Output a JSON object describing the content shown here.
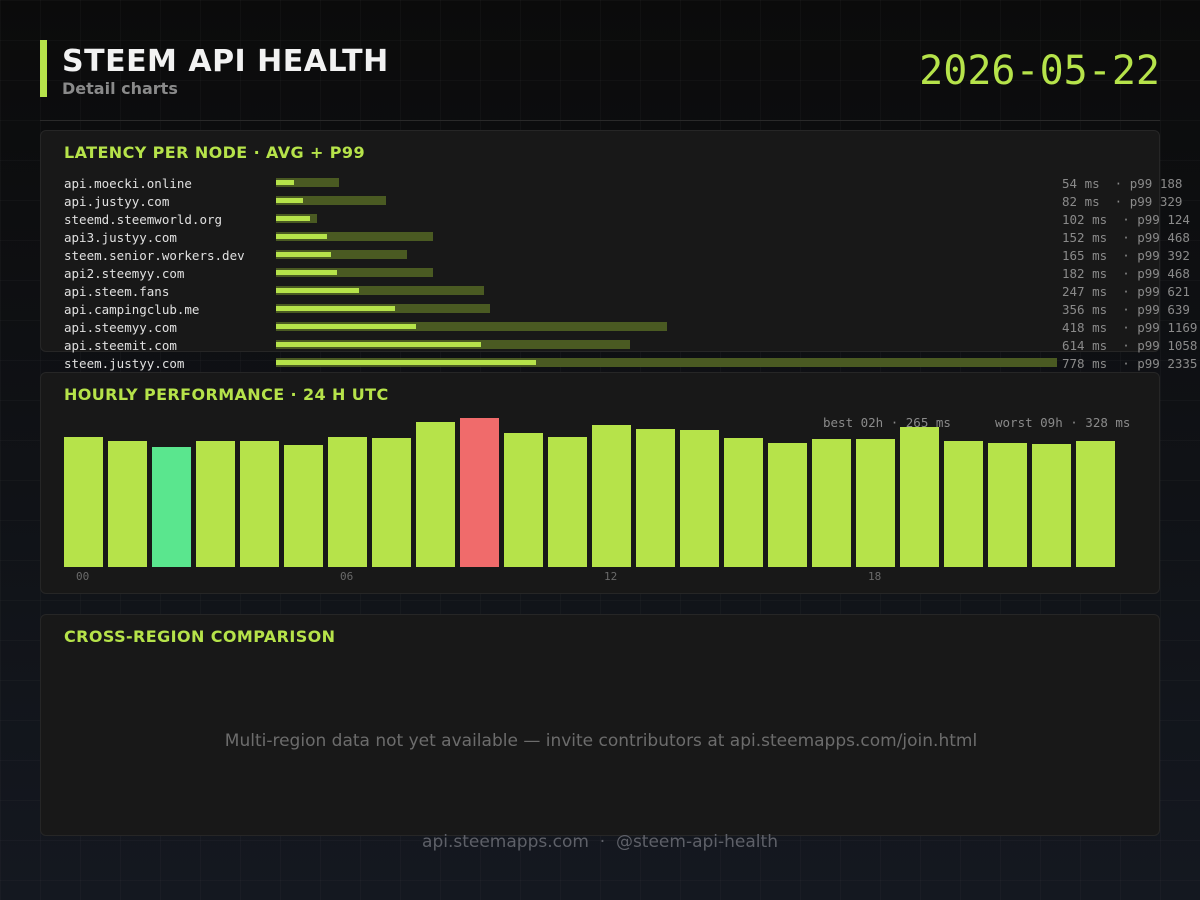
{
  "header": {
    "title": "STEEM API HEALTH",
    "subtitle": "Detail charts",
    "date": "2026-05-22"
  },
  "colors": {
    "accent": "#b6e34a",
    "p99_bar": "#4a5a22",
    "best": "#5ae68e",
    "worst": "#f06b6b"
  },
  "chart_data": [
    {
      "type": "bar",
      "orientation": "horizontal",
      "title": "LATENCY PER NODE  ·  AVG + P99",
      "unit": "ms",
      "xlim": [
        0,
        2335
      ],
      "rows": [
        {
          "node": "api.moecki.online",
          "avg": 54,
          "p99": 188,
          "label": "54 ms  · p99 188"
        },
        {
          "node": "api.justyy.com",
          "avg": 82,
          "p99": 329,
          "label": "82 ms  · p99 329"
        },
        {
          "node": "steemd.steemworld.org",
          "avg": 102,
          "p99": 124,
          "label": "102 ms  · p99 124"
        },
        {
          "node": "api3.justyy.com",
          "avg": 152,
          "p99": 468,
          "label": "152 ms  · p99 468"
        },
        {
          "node": "steem.senior.workers.dev",
          "avg": 165,
          "p99": 392,
          "label": "165 ms  · p99 392"
        },
        {
          "node": "api2.steemyy.com",
          "avg": 182,
          "p99": 468,
          "label": "182 ms  · p99 468"
        },
        {
          "node": "api.steem.fans",
          "avg": 247,
          "p99": 621,
          "label": "247 ms  · p99 621"
        },
        {
          "node": "api.campingclub.me",
          "avg": 356,
          "p99": 639,
          "label": "356 ms  · p99 639"
        },
        {
          "node": "api.steemyy.com",
          "avg": 418,
          "p99": 1169,
          "label": "418 ms  · p99 1169"
        },
        {
          "node": "api.steemit.com",
          "avg": 614,
          "p99": 1058,
          "label": "614 ms  · p99 1058"
        },
        {
          "node": "steem.justyy.com",
          "avg": 778,
          "p99": 2335,
          "label": "778 ms  · p99 2335"
        }
      ]
    },
    {
      "type": "bar",
      "title": "HOURLY PERFORMANCE  ·  24 H UTC",
      "unit": "ms",
      "ylim": [
        0,
        328
      ],
      "best": {
        "hour": 2,
        "label": "best 02h · 265 ms"
      },
      "worst": {
        "hour": 9,
        "label": "worst 09h · 328 ms"
      },
      "x_ticks": [
        {
          "hour": 0,
          "label": "00"
        },
        {
          "hour": 6,
          "label": "06"
        },
        {
          "hour": 12,
          "label": "12"
        },
        {
          "hour": 18,
          "label": "18"
        }
      ],
      "values": [
        286,
        277,
        265,
        277,
        277,
        268,
        286,
        284,
        319,
        328,
        295,
        286,
        312,
        303,
        301,
        284,
        273,
        282,
        282,
        308,
        277,
        273,
        271,
        277
      ]
    }
  ],
  "region": {
    "title": "CROSS-REGION COMPARISON",
    "message": "Multi-region data not yet available — invite contributors at api.steemapps.com/join.html"
  },
  "footer": "api.steemapps.com  ·  @steem-api-health"
}
